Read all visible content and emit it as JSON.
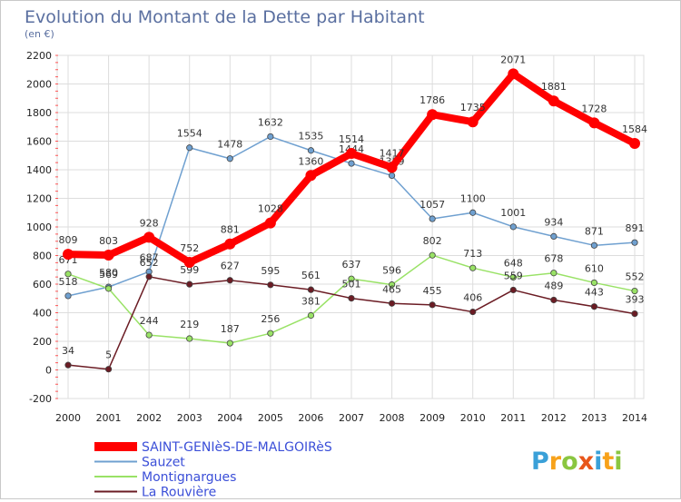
{
  "chart_data": {
    "type": "line",
    "title": "Evolution du Montant de la Dette par Habitant",
    "subtitle": "(en €)",
    "xlabel": "",
    "ylabel": "",
    "x": [
      "2000",
      "2001",
      "2002",
      "2003",
      "2004",
      "2005",
      "2006",
      "2007",
      "2008",
      "2009",
      "2010",
      "2011",
      "2012",
      "2013",
      "2014"
    ],
    "ylim": [
      -200,
      2200
    ],
    "yticks": [
      -200,
      0,
      200,
      400,
      600,
      800,
      1000,
      1200,
      1400,
      1600,
      1800,
      2000,
      2200
    ],
    "grid": true,
    "legend_position": "bottom-left",
    "series": [
      {
        "name": "SAINT-GENIèS-DE-MALGOIRèS",
        "color": "#ff0000",
        "values": [
          809,
          803,
          928,
          752,
          881,
          1028,
          1360,
          1514,
          1417,
          1786,
          1735,
          2071,
          1881,
          1728,
          1584
        ]
      },
      {
        "name": "Sauzet",
        "color": "#6fa0d0",
        "values": [
          518,
          580,
          687,
          1554,
          1478,
          1632,
          1535,
          1444,
          1359,
          1057,
          1100,
          1001,
          934,
          871,
          891
        ]
      },
      {
        "name": "Montignargues",
        "color": "#99e266",
        "values": [
          671,
          569,
          244,
          219,
          187,
          256,
          381,
          637,
          596,
          802,
          713,
          648,
          678,
          610,
          552
        ]
      },
      {
        "name": "La Rouvière",
        "color": "#6b1c24",
        "values": [
          34,
          5,
          652,
          599,
          627,
          595,
          561,
          501,
          465,
          455,
          406,
          559,
          489,
          443,
          393
        ]
      }
    ]
  },
  "brand": {
    "letters": [
      "P",
      "r",
      "o",
      "x",
      "i",
      "t",
      "i"
    ],
    "colors": [
      "#3aa0d8",
      "#f7a21b",
      "#8ac640",
      "#e8561a",
      "#3aa0d8",
      "#f7a21b",
      "#8ac640"
    ]
  }
}
